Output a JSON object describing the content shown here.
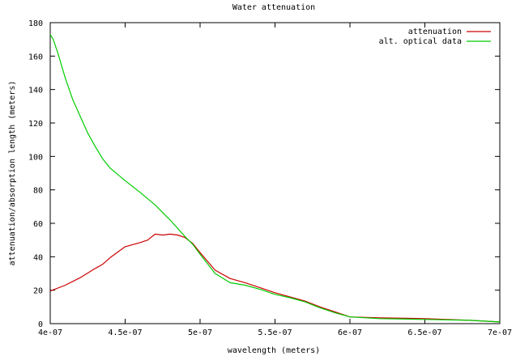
{
  "chart_data": {
    "type": "line",
    "title": "Water attenuation",
    "xlabel": "wavelength (meters)",
    "ylabel": "attenuation/absorption length (meters)",
    "xlim": [
      4e-07,
      7e-07
    ],
    "ylim": [
      0,
      180
    ],
    "x_ticks": [
      {
        "value": 4e-07,
        "label": "4e-07"
      },
      {
        "value": 4.5e-07,
        "label": "4.5e-07"
      },
      {
        "value": 5e-07,
        "label": "5e-07"
      },
      {
        "value": 5.5e-07,
        "label": "5.5e-07"
      },
      {
        "value": 6e-07,
        "label": "6e-07"
      },
      {
        "value": 6.5e-07,
        "label": "6.5e-07"
      },
      {
        "value": 7e-07,
        "label": "7e-07"
      }
    ],
    "y_ticks": [
      {
        "value": 0,
        "label": "0"
      },
      {
        "value": 20,
        "label": "20"
      },
      {
        "value": 40,
        "label": "40"
      },
      {
        "value": 60,
        "label": "60"
      },
      {
        "value": 80,
        "label": "80"
      },
      {
        "value": 100,
        "label": "100"
      },
      {
        "value": 120,
        "label": "120"
      },
      {
        "value": 140,
        "label": "140"
      },
      {
        "value": 160,
        "label": "160"
      },
      {
        "value": 180,
        "label": "180"
      }
    ],
    "grid": false,
    "legend_position": "top-right",
    "series": [
      {
        "name": "attenuation",
        "color": "#cc0000",
        "points": [
          [
            4e-07,
            19.5
          ],
          [
            4.1e-07,
            23.0
          ],
          [
            4.2e-07,
            27.5
          ],
          [
            4.3e-07,
            33.0
          ],
          [
            4.35e-07,
            35.5
          ],
          [
            4.4e-07,
            39.5
          ],
          [
            4.5e-07,
            46.0
          ],
          [
            4.6e-07,
            48.5
          ],
          [
            4.65e-07,
            50.0
          ],
          [
            4.7e-07,
            53.5
          ],
          [
            4.75e-07,
            53.0
          ],
          [
            4.8e-07,
            53.5
          ],
          [
            4.85e-07,
            53.0
          ],
          [
            4.9e-07,
            51.5
          ],
          [
            4.95e-07,
            48.0
          ],
          [
            5e-07,
            42.5
          ],
          [
            5.1e-07,
            32.0
          ],
          [
            5.2e-07,
            27.0
          ],
          [
            5.3e-07,
            24.5
          ],
          [
            5.4e-07,
            21.5
          ],
          [
            5.5e-07,
            18.5
          ],
          [
            5.6e-07,
            16.0
          ],
          [
            5.7e-07,
            13.5
          ],
          [
            5.8e-07,
            10.0
          ],
          [
            5.9e-07,
            7.0
          ],
          [
            6e-07,
            4.0
          ],
          [
            6.2e-07,
            3.5
          ],
          [
            6.5e-07,
            3.0
          ],
          [
            6.8e-07,
            2.0
          ],
          [
            7e-07,
            1.0
          ]
        ]
      },
      {
        "name": "alt. optical data",
        "color": "#00cc00",
        "points": [
          [
            4e-07,
            173.0
          ],
          [
            4.02e-07,
            170.0
          ],
          [
            4.05e-07,
            162.0
          ],
          [
            4.1e-07,
            147.0
          ],
          [
            4.15e-07,
            134.0
          ],
          [
            4.2e-07,
            124.0
          ],
          [
            4.25e-07,
            114.0
          ],
          [
            4.3e-07,
            106.0
          ],
          [
            4.35e-07,
            98.5
          ],
          [
            4.4e-07,
            93.0
          ],
          [
            4.5e-07,
            85.5
          ],
          [
            4.6e-07,
            78.5
          ],
          [
            4.7e-07,
            71.0
          ],
          [
            4.8e-07,
            62.0
          ],
          [
            4.85e-07,
            57.0
          ],
          [
            4.9e-07,
            52.0
          ],
          [
            4.95e-07,
            47.5
          ],
          [
            5e-07,
            41.5
          ],
          [
            5.1e-07,
            30.0
          ],
          [
            5.2e-07,
            24.5
          ],
          [
            5.3e-07,
            23.0
          ],
          [
            5.4e-07,
            20.5
          ],
          [
            5.5e-07,
            17.5
          ],
          [
            5.6e-07,
            15.5
          ],
          [
            5.7e-07,
            13.0
          ],
          [
            5.8e-07,
            9.5
          ],
          [
            5.9e-07,
            6.5
          ],
          [
            6e-07,
            4.0
          ],
          [
            6.2e-07,
            3.0
          ],
          [
            6.5e-07,
            2.5
          ],
          [
            6.8e-07,
            2.0
          ],
          [
            7e-07,
            1.0
          ]
        ]
      }
    ]
  }
}
